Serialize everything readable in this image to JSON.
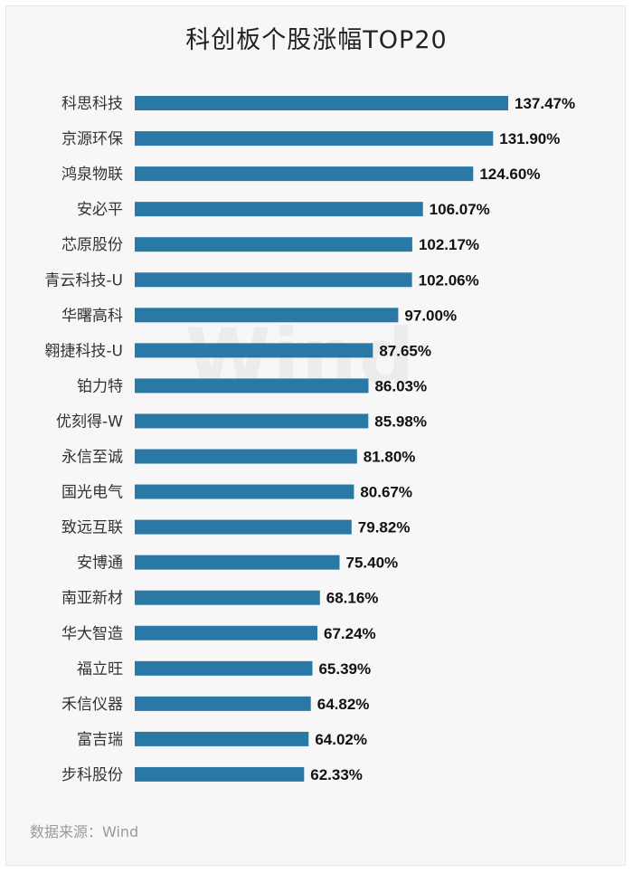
{
  "chart_data": {
    "type": "bar",
    "orientation": "horizontal",
    "title": "科创板个股涨幅TOP20",
    "categories": [
      "科思科技",
      "京源环保",
      "鸿泉物联",
      "安必平",
      "芯原股份",
      "青云科技-U",
      "华曙高科",
      "翱捷科技-U",
      "铂力特",
      "优刻得-W",
      "永信至诚",
      "国光电气",
      "致远互联",
      "安博通",
      "南亚新材",
      "华大智造",
      "福立旺",
      "禾信仪器",
      "富吉瑞",
      "步科股份"
    ],
    "values": [
      137.47,
      131.9,
      124.6,
      106.07,
      102.17,
      102.06,
      97.0,
      87.65,
      86.03,
      85.98,
      81.8,
      80.67,
      79.82,
      75.4,
      68.16,
      67.24,
      65.39,
      64.82,
      64.02,
      62.33
    ],
    "value_labels": [
      "137.47%",
      "131.90%",
      "124.60%",
      "106.07%",
      "102.17%",
      "102.06%",
      "97.00%",
      "87.65%",
      "86.03%",
      "85.98%",
      "81.80%",
      "80.67%",
      "79.82%",
      "75.40%",
      "68.16%",
      "67.24%",
      "65.39%",
      "64.82%",
      "64.02%",
      "62.33%"
    ],
    "unit": "%",
    "xlim": [
      0,
      140
    ],
    "color": "#2a78a6",
    "grid": false,
    "legend": "none"
  },
  "source_text": "数据来源：Wind",
  "watermark_text": "Wind"
}
